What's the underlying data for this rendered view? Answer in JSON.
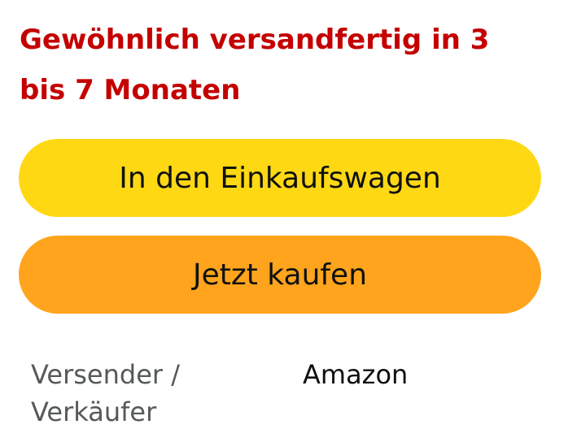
{
  "availability": {
    "text": "Gewöhnlich versandfertig in 3 bis 7 Monaten",
    "color": "#c40000"
  },
  "buttons": {
    "add_to_cart_label": "In den Einkaufswagen",
    "add_to_cart_color": "#ffd814",
    "buy_now_label": "Jetzt kaufen",
    "buy_now_color": "#ffa41c"
  },
  "seller": {
    "label": "Versender / Verkäufer",
    "value": "Amazon"
  }
}
